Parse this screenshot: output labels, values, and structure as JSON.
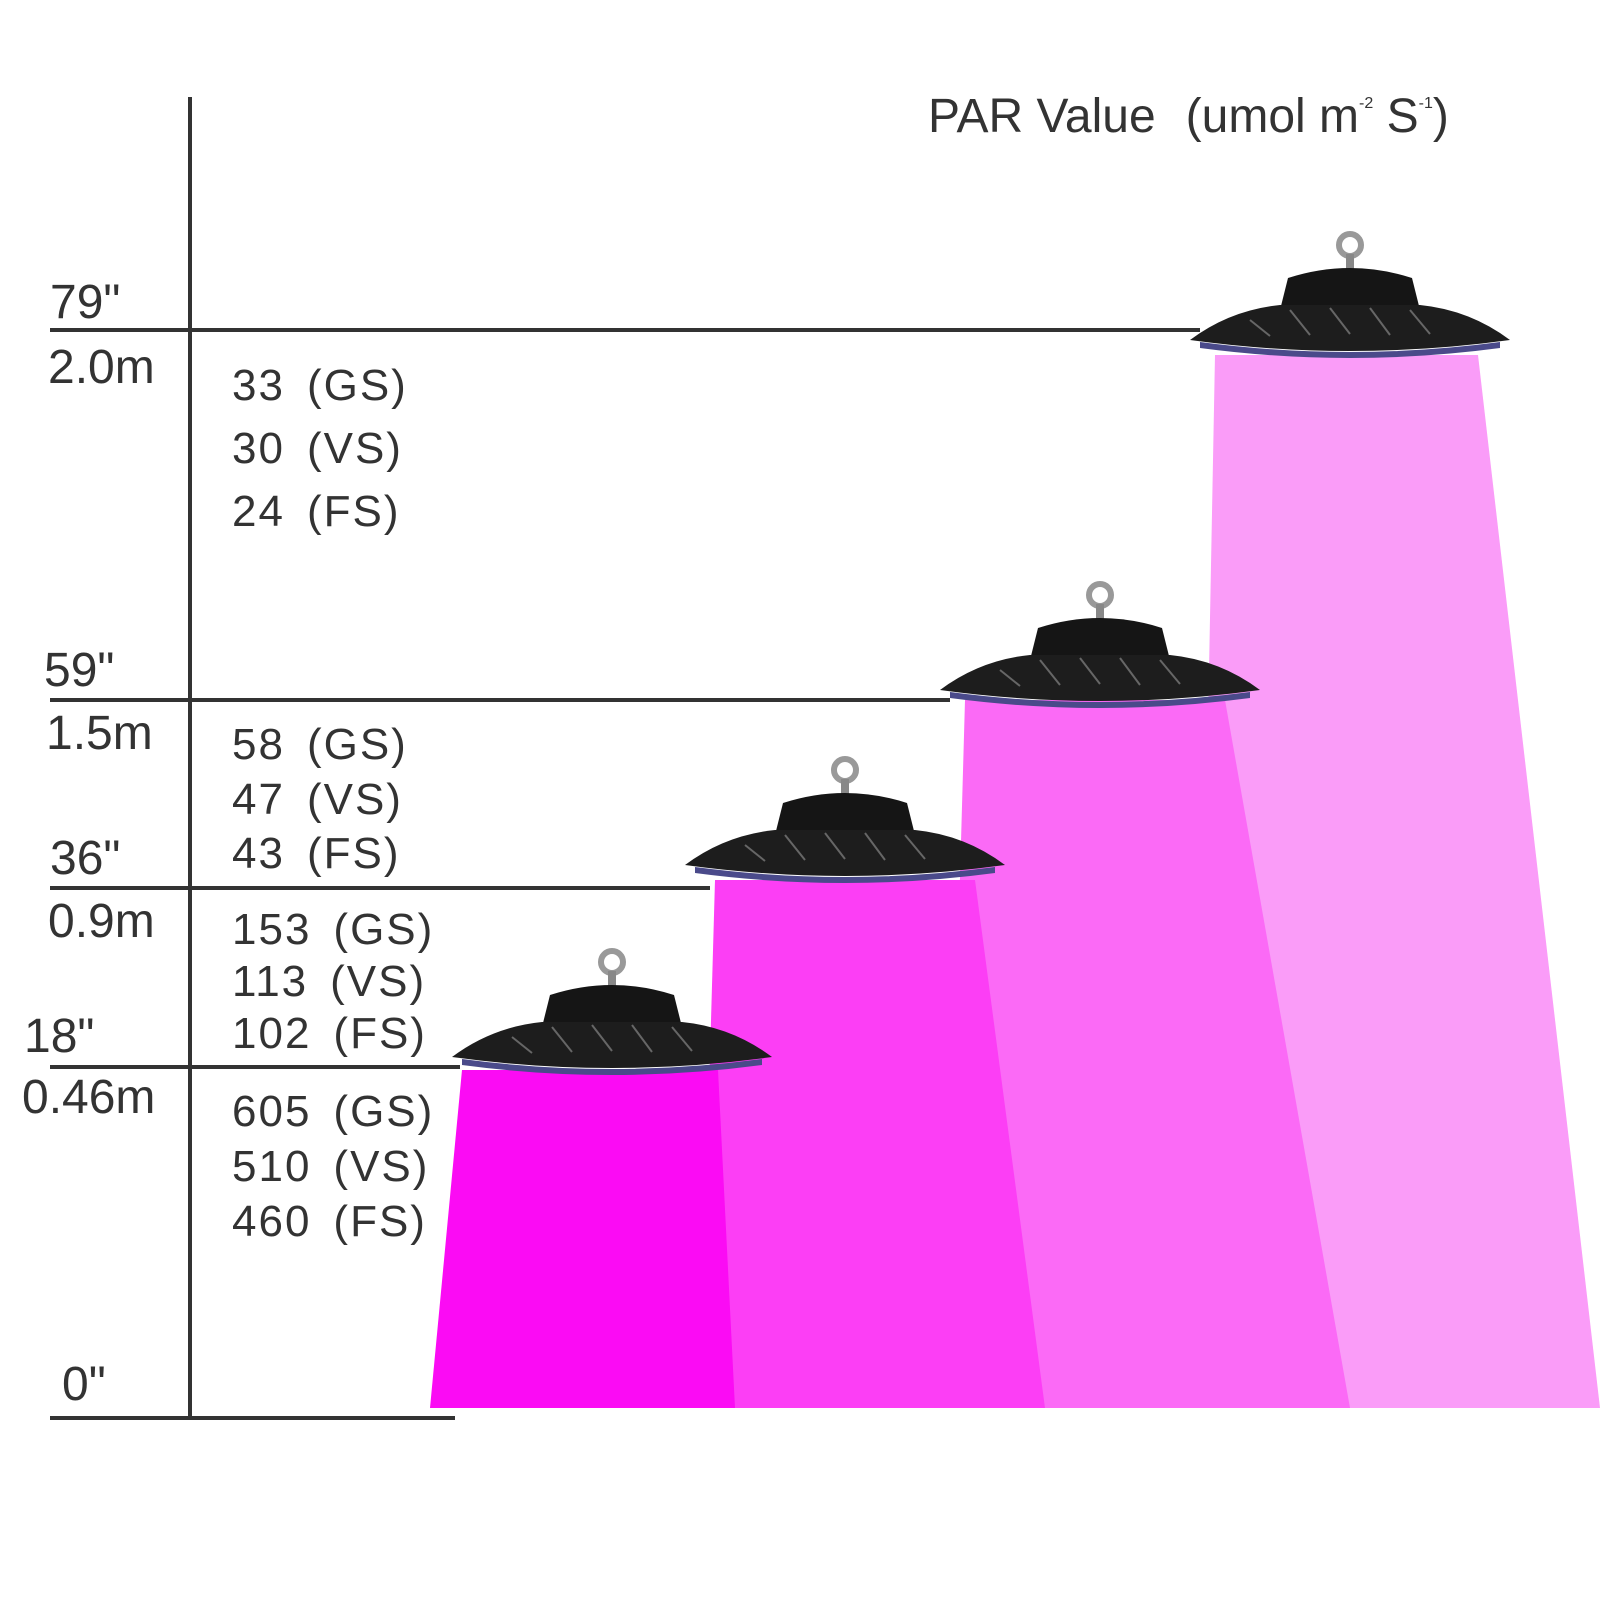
{
  "header": {
    "title": "PAR Value",
    "unit": {
      "open": "(umol m",
      "sup1": "-2",
      "mid": " S",
      "sup2": "-1",
      "close": ")"
    }
  },
  "levels": [
    {
      "inches": "79\"",
      "meters": "2.0m",
      "readings": [
        {
          "value": 33,
          "label": "(GS)"
        },
        {
          "value": 30,
          "label": "(VS)"
        },
        {
          "value": 24,
          "label": "(FS)"
        }
      ]
    },
    {
      "inches": "59\"",
      "meters": "1.5m",
      "readings": [
        {
          "value": 58,
          "label": "(GS)"
        },
        {
          "value": 47,
          "label": "(VS)"
        },
        {
          "value": 43,
          "label": "(FS)"
        }
      ]
    },
    {
      "inches": "36\"",
      "meters": "0.9m",
      "readings": [
        {
          "value": 153,
          "label": "(GS)"
        },
        {
          "value": 113,
          "label": "(VS)"
        },
        {
          "value": 102,
          "label": "(FS)"
        }
      ]
    },
    {
      "inches": "18\"",
      "meters": "0.46m",
      "readings": [
        {
          "value": 605,
          "label": "(GS)"
        },
        {
          "value": 510,
          "label": "(VS)"
        },
        {
          "value": 460,
          "label": "(FS)"
        }
      ]
    }
  ],
  "floor": {
    "inches": "0\""
  }
}
